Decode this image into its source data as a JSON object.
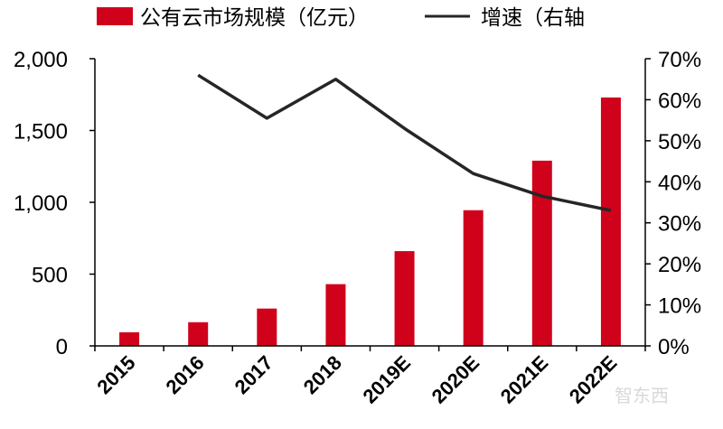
{
  "chart_data": {
    "type": "bar+line",
    "categories": [
      "2015",
      "2016",
      "2017",
      "2018",
      "2019E",
      "2020E",
      "2021E",
      "2022E"
    ],
    "series": [
      {
        "name": "公有云市场规模（亿元）",
        "type": "bar",
        "axis": "left",
        "color": "#d0021b",
        "values": [
          95,
          165,
          260,
          430,
          660,
          945,
          1290,
          1730
        ]
      },
      {
        "name": "增速（右轴",
        "type": "line",
        "axis": "right",
        "color": "#262626",
        "values": [
          null,
          0.66,
          0.555,
          0.65,
          0.53,
          0.42,
          0.365,
          0.33
        ]
      }
    ],
    "left_axis": {
      "ylim": [
        0,
        2000
      ],
      "ticks": [
        0,
        500,
        1000,
        1500,
        2000
      ],
      "tick_labels": [
        "0",
        "500",
        "1,000",
        "1,500",
        "2,000"
      ]
    },
    "right_axis": {
      "ylim": [
        0,
        0.7
      ],
      "ticks": [
        0,
        0.1,
        0.2,
        0.3,
        0.4,
        0.5,
        0.6,
        0.7
      ],
      "tick_labels": [
        "0%",
        "10%",
        "20%",
        "30%",
        "40%",
        "50%",
        "60%",
        "70%"
      ]
    },
    "grid": false,
    "legend_position": "top"
  },
  "watermark": "智东西"
}
